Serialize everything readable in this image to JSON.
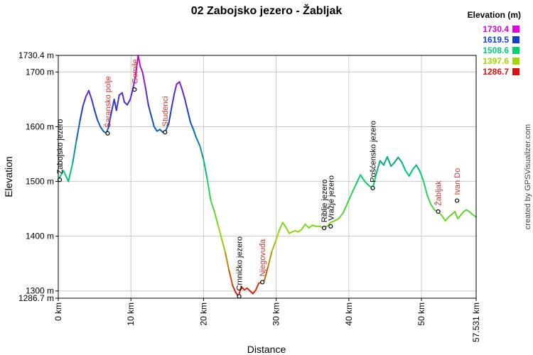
{
  "chart_data": {
    "type": "line",
    "title": "02 Zabojsko jezero - Žabljak",
    "xlabel": "Distance",
    "ylabel": "Elevation",
    "xlim": [
      0,
      57.531
    ],
    "ylim": [
      1286.7,
      1730.4
    ],
    "x_ticks": [
      {
        "value": 0,
        "label": "0 km"
      },
      {
        "value": 10,
        "label": "10 km"
      },
      {
        "value": 20,
        "label": "20 km"
      },
      {
        "value": 30,
        "label": "30 km"
      },
      {
        "value": 40,
        "label": "40 km"
      },
      {
        "value": 50,
        "label": "50 km"
      },
      {
        "value": 57.531,
        "label": "57.531 km"
      }
    ],
    "y_ticks": [
      {
        "value": 1730.4,
        "label": "1730.4 m"
      },
      {
        "value": 1700,
        "label": "1700 m"
      },
      {
        "value": 1600,
        "label": "1600 m"
      },
      {
        "value": 1500,
        "label": "1500 m"
      },
      {
        "value": 1400,
        "label": "1400 m"
      },
      {
        "value": 1300,
        "label": "1300 m"
      },
      {
        "value": 1286.7,
        "label": "1286.7 m"
      }
    ],
    "legend": {
      "title": "Elevation (m)",
      "placement": "top-right",
      "entries": [
        {
          "label": "1730.4",
          "color": "#e000e0"
        },
        {
          "label": "1619.5",
          "color": "#1040d0"
        },
        {
          "label": "1508.6",
          "color": "#00d070"
        },
        {
          "label": "1397.6",
          "color": "#a0d800"
        },
        {
          "label": "1286.7",
          "color": "#e01010"
        }
      ]
    },
    "profile": {
      "x": [
        0.0,
        0.7,
        1.4,
        2.0,
        2.5,
        3.0,
        3.4,
        3.8,
        4.2,
        4.6,
        5.0,
        5.4,
        5.8,
        6.2,
        6.6,
        6.9,
        7.3,
        7.7,
        8.0,
        8.4,
        8.8,
        9.1,
        9.5,
        9.9,
        10.2,
        10.6,
        11.0,
        11.3,
        11.6,
        12.0,
        12.4,
        12.8,
        13.2,
        13.6,
        14.0,
        14.4,
        14.8,
        15.2,
        15.6,
        16.0,
        16.3,
        16.7,
        17.0,
        17.4,
        17.8,
        18.2,
        18.6,
        19.0,
        19.5,
        20.0,
        20.5,
        21.0,
        21.5,
        22.0,
        22.5,
        23.0,
        23.5,
        24.0,
        24.4,
        24.8,
        25.2,
        25.6,
        26.0,
        26.4,
        26.8,
        27.2,
        27.6,
        28.0,
        28.4,
        28.9,
        29.4,
        29.9,
        30.4,
        30.9,
        31.4,
        31.8,
        32.2,
        32.6,
        33.0,
        33.5,
        34.0,
        34.5,
        35.0,
        35.5,
        36.0,
        36.6,
        37.0,
        37.5,
        38.0,
        38.6,
        39.2,
        39.8,
        40.4,
        41.0,
        41.6,
        42.2,
        42.8,
        43.3,
        43.8,
        44.3,
        44.8,
        45.3,
        45.8,
        46.3,
        46.8,
        47.3,
        47.8,
        48.3,
        48.8,
        49.3,
        49.8,
        50.3,
        50.8,
        51.3,
        51.8,
        52.3,
        52.8,
        53.3,
        53.8,
        54.2,
        54.6,
        55.0,
        55.4,
        55.8,
        56.2,
        56.6,
        57.0,
        57.531
      ],
      "y": [
        1503,
        1520,
        1500,
        1535,
        1575,
        1612,
        1638,
        1655,
        1666,
        1650,
        1630,
        1612,
        1600,
        1592,
        1588,
        1598,
        1625,
        1650,
        1630,
        1658,
        1662,
        1645,
        1640,
        1650,
        1665,
        1690,
        1730,
        1710,
        1700,
        1672,
        1640,
        1620,
        1600,
        1592,
        1595,
        1590,
        1593,
        1605,
        1635,
        1662,
        1678,
        1682,
        1670,
        1652,
        1630,
        1608,
        1595,
        1580,
        1565,
        1540,
        1505,
        1465,
        1445,
        1420,
        1395,
        1370,
        1338,
        1310,
        1298,
        1290,
        1308,
        1302,
        1305,
        1300,
        1295,
        1302,
        1314,
        1316,
        1320,
        1345,
        1372,
        1390,
        1410,
        1425,
        1415,
        1405,
        1408,
        1410,
        1408,
        1412,
        1422,
        1415,
        1420,
        1418,
        1418,
        1415,
        1418,
        1425,
        1428,
        1432,
        1442,
        1460,
        1478,
        1495,
        1512,
        1500,
        1492,
        1488,
        1515,
        1538,
        1530,
        1545,
        1528,
        1535,
        1544,
        1535,
        1520,
        1510,
        1522,
        1530,
        1518,
        1500,
        1475,
        1458,
        1448,
        1445,
        1438,
        1428,
        1436,
        1440,
        1445,
        1432,
        1438,
        1445,
        1448,
        1445,
        1440,
        1435
      ]
    },
    "waypoints": [
      {
        "name": "Zabojsko jezero",
        "x": 0.2,
        "y": 1503,
        "color": "#000000"
      },
      {
        "name": "Šaransko polje",
        "x": 6.8,
        "y": 1588,
        "color": "#cc3333"
      },
      {
        "name": "Gomile",
        "x": 10.5,
        "y": 1668,
        "color": "#cc3333"
      },
      {
        "name": "Studenci",
        "x": 14.7,
        "y": 1590,
        "color": "#cc3333"
      },
      {
        "name": "Crnničko jezero",
        "x": 24.9,
        "y": 1290,
        "color": "#000000"
      },
      {
        "name": "Njegovuđa",
        "x": 28.1,
        "y": 1316,
        "color": "#cc3333"
      },
      {
        "name": "Riblje jezero",
        "x": 36.6,
        "y": 1415,
        "color": "#000000"
      },
      {
        "name": "Vražje jezero",
        "x": 37.5,
        "y": 1418,
        "color": "#000000"
      },
      {
        "name": "Pošćensko jezero",
        "x": 43.3,
        "y": 1488,
        "color": "#000000"
      },
      {
        "name": "Žabljak",
        "x": 52.3,
        "y": 1445,
        "color": "#cc3333"
      },
      {
        "name": "Ivan Do",
        "x": 54.9,
        "y": 1465,
        "color": "#cc3333"
      }
    ],
    "grid": true
  },
  "credit": "created by GPSVisualizer.com"
}
